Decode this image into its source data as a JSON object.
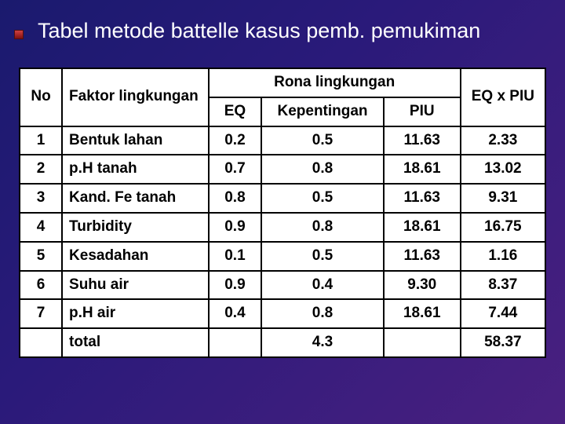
{
  "title": "Tabel metode battelle kasus pemb. pemukiman",
  "headers": {
    "no": "No",
    "faktor": "Faktor lingkungan",
    "rona": "Rona lingkungan",
    "eq": "EQ",
    "kepentingan": "Kepentingan",
    "piu": "PIU",
    "eqxpiu": "EQ x PIU"
  },
  "rows": [
    {
      "no": "1",
      "faktor": "Bentuk lahan",
      "eq": "0.2",
      "kepentingan": "0.5",
      "piu": "11.63",
      "eqxpiu": "2.33"
    },
    {
      "no": "2",
      "faktor": "p.H tanah",
      "eq": "0.7",
      "kepentingan": "0.8",
      "piu": "18.61",
      "eqxpiu": "13.02"
    },
    {
      "no": "3",
      "faktor": "Kand. Fe tanah",
      "eq": "0.8",
      "kepentingan": "0.5",
      "piu": "11.63",
      "eqxpiu": "9.31"
    },
    {
      "no": "4",
      "faktor": "Turbidity",
      "eq": "0.9",
      "kepentingan": "0.8",
      "piu": "18.61",
      "eqxpiu": "16.75"
    },
    {
      "no": "5",
      "faktor": "Kesadahan",
      "eq": "0.1",
      "kepentingan": "0.5",
      "piu": "11.63",
      "eqxpiu": "1.16"
    },
    {
      "no": "6",
      "faktor": "Suhu air",
      "eq": "0.9",
      "kepentingan": "0.4",
      "piu": "9.30",
      "eqxpiu": "8.37"
    },
    {
      "no": "7",
      "faktor": "p.H air",
      "eq": "0.4",
      "kepentingan": "0.8",
      "piu": "18.61",
      "eqxpiu": "7.44"
    }
  ],
  "total": {
    "label": "total",
    "kepentingan": "4.3",
    "eqxpiu": "58.37"
  },
  "colors": {
    "background_start": "#1a1a6e",
    "background_end": "#4a2080",
    "table_bg": "#ffffff",
    "border": "#000000",
    "text": "#000000",
    "title_text": "#ffffff",
    "bullet": "#a02020"
  }
}
